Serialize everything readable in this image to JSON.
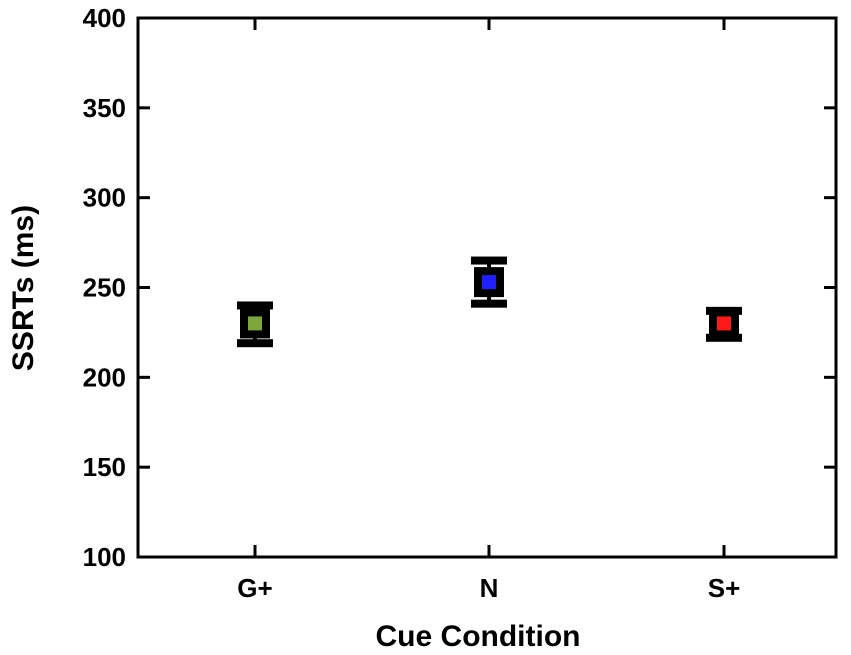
{
  "chart_data": {
    "type": "scatter",
    "title": "",
    "xlabel": "Cue Condition",
    "ylabel": "SSRTs (ms)",
    "ylim": [
      100,
      400
    ],
    "yticks": [
      100,
      150,
      200,
      250,
      300,
      350,
      400
    ],
    "grid": false,
    "categories": [
      "G+",
      "N",
      "S+"
    ],
    "values": [
      230,
      253,
      230
    ],
    "error_low": [
      219,
      241,
      222
    ],
    "error_high": [
      240,
      265,
      237
    ],
    "colors": [
      "#7aa63c",
      "#1f1fff",
      "#ff1a1a"
    ]
  }
}
